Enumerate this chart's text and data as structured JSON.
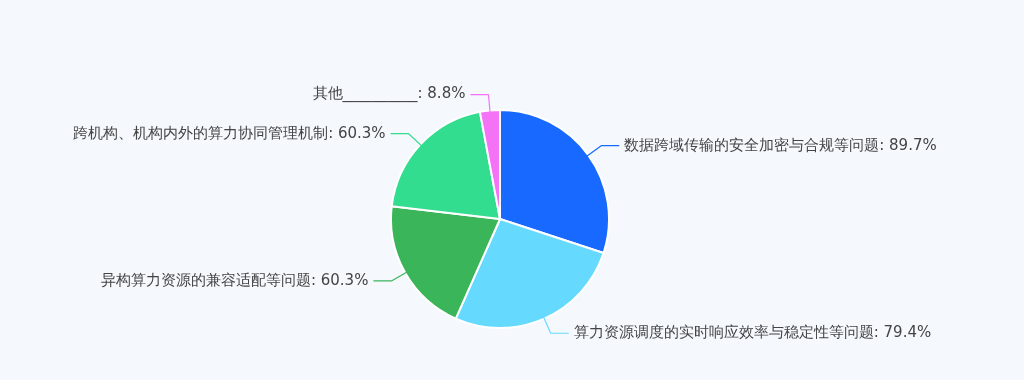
{
  "chart_data": {
    "type": "pie",
    "categories": [
      "数据跨域传输的安全加密与合规等问题",
      "算力资源调度的实时响应效率与稳定性等问题",
      "异构算力资源的兼容适配等问题",
      "跨机构、机构内外的算力协同管理机制",
      "其他__________"
    ],
    "values": [
      89.7,
      79.4,
      60.3,
      60.3,
      8.8
    ],
    "value_labels": [
      "89.7%",
      "79.4%",
      "60.3%",
      "60.3%",
      "8.8%"
    ],
    "colors": [
      "#1769ff",
      "#66d9ff",
      "#3bb559",
      "#33dd90",
      "#f472f5"
    ],
    "legend": false
  }
}
